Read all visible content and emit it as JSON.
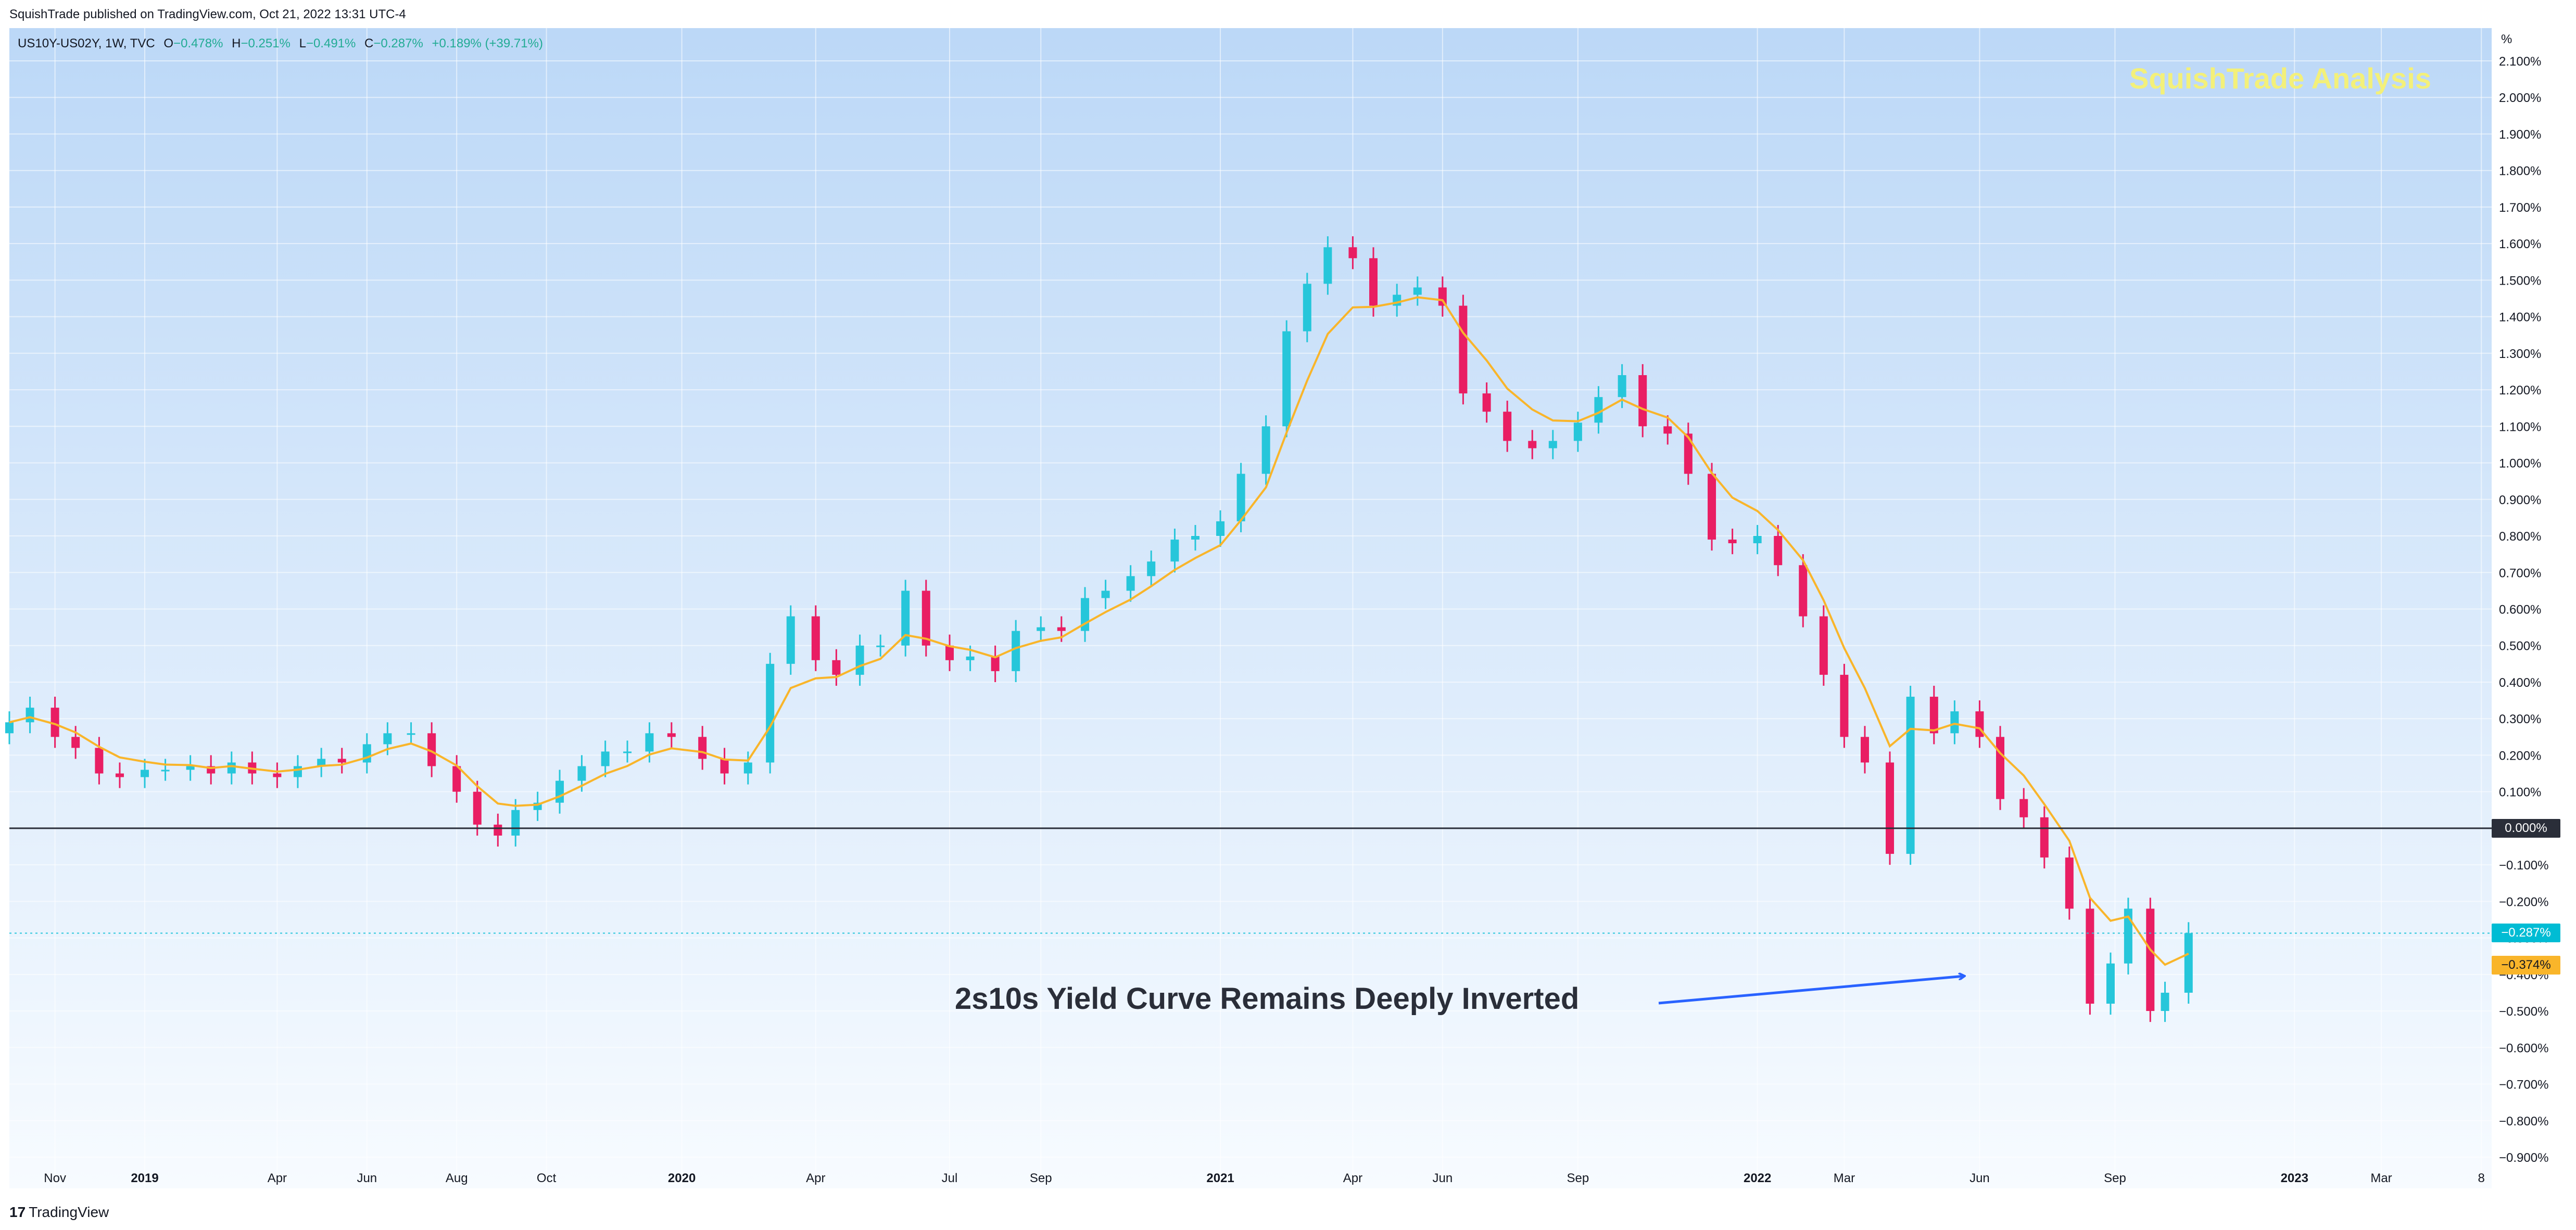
{
  "header": {
    "publisher_line": "SquishTrade published on TradingView.com, Oct 21, 2022 13:31 UTC-4"
  },
  "legend": {
    "symbol": "US10Y-US02Y, 1W, TVC",
    "open_label": "O",
    "open_value": "−0.478%",
    "high_label": "H",
    "high_value": "−0.251%",
    "low_label": "L",
    "low_value": "−0.491%",
    "close_label": "C",
    "close_value": "−0.287%",
    "change_value": "+0.189% (+39.71%)"
  },
  "watermark_text": "SquishTrade Analysis",
  "annotation_text": "2s10s Yield Curve Remains Deeply Inverted",
  "footer_logo_mark": "17",
  "footer_logo_text": "TradingView",
  "axis_unit": "%",
  "colors": {
    "up": "#26c6da",
    "down": "#e91e63",
    "ma": "#f9b52a",
    "zero_line": "#2a2e39",
    "arrow": "#2962ff",
    "bg_top": "#bcd8f7",
    "bg_bottom": "#f7fbff",
    "tag_current": "#00bcd4",
    "tag_ma": "#f9b52a",
    "tag_zero": "#2a2e39"
  },
  "price_tags": {
    "zero": "0.000%",
    "current": "−0.287%",
    "ma": "−0.374%"
  },
  "chart_data": {
    "type": "candlestick",
    "title": "",
    "interval": "1W",
    "ylabel": "%",
    "ylim": [
      -0.9,
      2.1
    ],
    "xlim": [
      "2018-10-01",
      "2023-05-15"
    ],
    "grid": true,
    "y_ticks": [
      "2.100%",
      "2.000%",
      "1.900%",
      "1.800%",
      "1.700%",
      "1.600%",
      "1.500%",
      "1.400%",
      "1.300%",
      "1.200%",
      "1.100%",
      "1.000%",
      "0.900%",
      "0.800%",
      "0.700%",
      "0.600%",
      "0.500%",
      "0.400%",
      "0.300%",
      "0.200%",
      "0.100%",
      "0.000%",
      "−0.100%",
      "−0.200%",
      "−0.300%",
      "−0.400%",
      "−0.500%",
      "−0.600%",
      "−0.700%",
      "−0.800%",
      "−0.900%"
    ],
    "x_ticks": [
      {
        "label": "Nov",
        "date": "2018-11-01"
      },
      {
        "label": "2019",
        "date": "2019-01-01",
        "bold": true
      },
      {
        "label": "Apr",
        "date": "2019-04-01"
      },
      {
        "label": "Jun",
        "date": "2019-06-01"
      },
      {
        "label": "Aug",
        "date": "2019-08-01"
      },
      {
        "label": "Oct",
        "date": "2019-10-01"
      },
      {
        "label": "2020",
        "date": "2020-01-01",
        "bold": true
      },
      {
        "label": "Apr",
        "date": "2020-04-01"
      },
      {
        "label": "Jul",
        "date": "2020-07-01"
      },
      {
        "label": "Sep",
        "date": "2020-09-01"
      },
      {
        "label": "2021",
        "date": "2021-01-01",
        "bold": true
      },
      {
        "label": "Apr",
        "date": "2021-04-01"
      },
      {
        "label": "Jun",
        "date": "2021-06-01"
      },
      {
        "label": "Sep",
        "date": "2021-09-01"
      },
      {
        "label": "2022",
        "date": "2022-01-01",
        "bold": true
      },
      {
        "label": "Mar",
        "date": "2022-03-01"
      },
      {
        "label": "Jun",
        "date": "2022-06-01"
      },
      {
        "label": "Sep",
        "date": "2022-09-01"
      },
      {
        "label": "2023",
        "date": "2023-01-01",
        "bold": true
      },
      {
        "label": "Mar",
        "date": "2023-03-01"
      },
      {
        "label": "8",
        "date": "2023-05-08"
      }
    ],
    "weekly_close": [
      {
        "date": "2018-10-01",
        "close": 0.29
      },
      {
        "date": "2018-10-15",
        "close": 0.33
      },
      {
        "date": "2018-11-01",
        "close": 0.25
      },
      {
        "date": "2018-11-15",
        "close": 0.22
      },
      {
        "date": "2018-12-01",
        "close": 0.15
      },
      {
        "date": "2018-12-15",
        "close": 0.14
      },
      {
        "date": "2019-01-01",
        "close": 0.16
      },
      {
        "date": "2019-01-15",
        "close": 0.16
      },
      {
        "date": "2019-02-01",
        "close": 0.17
      },
      {
        "date": "2019-02-15",
        "close": 0.15
      },
      {
        "date": "2019-03-01",
        "close": 0.18
      },
      {
        "date": "2019-03-15",
        "close": 0.15
      },
      {
        "date": "2019-04-01",
        "close": 0.14
      },
      {
        "date": "2019-04-15",
        "close": 0.17
      },
      {
        "date": "2019-05-01",
        "close": 0.19
      },
      {
        "date": "2019-05-15",
        "close": 0.18
      },
      {
        "date": "2019-06-01",
        "close": 0.23
      },
      {
        "date": "2019-06-15",
        "close": 0.26
      },
      {
        "date": "2019-07-01",
        "close": 0.26
      },
      {
        "date": "2019-07-15",
        "close": 0.17
      },
      {
        "date": "2019-08-01",
        "close": 0.1
      },
      {
        "date": "2019-08-15",
        "close": 0.01
      },
      {
        "date": "2019-08-29",
        "close": -0.02
      },
      {
        "date": "2019-09-10",
        "close": 0.05
      },
      {
        "date": "2019-09-25",
        "close": 0.07
      },
      {
        "date": "2019-10-10",
        "close": 0.13
      },
      {
        "date": "2019-10-25",
        "close": 0.17
      },
      {
        "date": "2019-11-10",
        "close": 0.21
      },
      {
        "date": "2019-11-25",
        "close": 0.21
      },
      {
        "date": "2019-12-10",
        "close": 0.26
      },
      {
        "date": "2019-12-25",
        "close": 0.25
      },
      {
        "date": "2020-01-15",
        "close": 0.19
      },
      {
        "date": "2020-01-30",
        "close": 0.15
      },
      {
        "date": "2020-02-15",
        "close": 0.18
      },
      {
        "date": "2020-03-01",
        "close": 0.45
      },
      {
        "date": "2020-03-15",
        "close": 0.58
      },
      {
        "date": "2020-04-01",
        "close": 0.46
      },
      {
        "date": "2020-04-15",
        "close": 0.42
      },
      {
        "date": "2020-05-01",
        "close": 0.5
      },
      {
        "date": "2020-05-15",
        "close": 0.5
      },
      {
        "date": "2020-06-01",
        "close": 0.65
      },
      {
        "date": "2020-06-15",
        "close": 0.5
      },
      {
        "date": "2020-07-01",
        "close": 0.46
      },
      {
        "date": "2020-07-15",
        "close": 0.47
      },
      {
        "date": "2020-08-01",
        "close": 0.43
      },
      {
        "date": "2020-08-15",
        "close": 0.54
      },
      {
        "date": "2020-09-01",
        "close": 0.55
      },
      {
        "date": "2020-09-15",
        "close": 0.54
      },
      {
        "date": "2020-10-01",
        "close": 0.63
      },
      {
        "date": "2020-10-15",
        "close": 0.65
      },
      {
        "date": "2020-11-01",
        "close": 0.69
      },
      {
        "date": "2020-11-15",
        "close": 0.73
      },
      {
        "date": "2020-12-01",
        "close": 0.79
      },
      {
        "date": "2020-12-15",
        "close": 0.8
      },
      {
        "date": "2021-01-01",
        "close": 0.84
      },
      {
        "date": "2021-01-15",
        "close": 0.97
      },
      {
        "date": "2021-02-01",
        "close": 1.1
      },
      {
        "date": "2021-02-15",
        "close": 1.36
      },
      {
        "date": "2021-03-01",
        "close": 1.49
      },
      {
        "date": "2021-03-15",
        "close": 1.59
      },
      {
        "date": "2021-04-01",
        "close": 1.56
      },
      {
        "date": "2021-04-15",
        "close": 1.43
      },
      {
        "date": "2021-05-01",
        "close": 1.46
      },
      {
        "date": "2021-05-15",
        "close": 1.48
      },
      {
        "date": "2021-06-01",
        "close": 1.43
      },
      {
        "date": "2021-06-15",
        "close": 1.19
      },
      {
        "date": "2021-07-01",
        "close": 1.14
      },
      {
        "date": "2021-07-15",
        "close": 1.06
      },
      {
        "date": "2021-08-01",
        "close": 1.04
      },
      {
        "date": "2021-08-15",
        "close": 1.06
      },
      {
        "date": "2021-09-01",
        "close": 1.11
      },
      {
        "date": "2021-09-15",
        "close": 1.18
      },
      {
        "date": "2021-10-01",
        "close": 1.24
      },
      {
        "date": "2021-10-15",
        "close": 1.1
      },
      {
        "date": "2021-11-01",
        "close": 1.08
      },
      {
        "date": "2021-11-15",
        "close": 0.97
      },
      {
        "date": "2021-12-01",
        "close": 0.79
      },
      {
        "date": "2021-12-15",
        "close": 0.78
      },
      {
        "date": "2022-01-01",
        "close": 0.8
      },
      {
        "date": "2022-01-15",
        "close": 0.72
      },
      {
        "date": "2022-02-01",
        "close": 0.58
      },
      {
        "date": "2022-02-15",
        "close": 0.42
      },
      {
        "date": "2022-03-01",
        "close": 0.25
      },
      {
        "date": "2022-03-15",
        "close": 0.18
      },
      {
        "date": "2022-04-01",
        "close": -0.07
      },
      {
        "date": "2022-04-15",
        "close": 0.36
      },
      {
        "date": "2022-05-01",
        "close": 0.26
      },
      {
        "date": "2022-05-15",
        "close": 0.32
      },
      {
        "date": "2022-06-01",
        "close": 0.25
      },
      {
        "date": "2022-06-15",
        "close": 0.08
      },
      {
        "date": "2022-07-01",
        "close": 0.03
      },
      {
        "date": "2022-07-15",
        "close": -0.08
      },
      {
        "date": "2022-08-01",
        "close": -0.22
      },
      {
        "date": "2022-08-15",
        "close": -0.48
      },
      {
        "date": "2022-08-29",
        "close": -0.37
      },
      {
        "date": "2022-09-10",
        "close": -0.22
      },
      {
        "date": "2022-09-25",
        "close": -0.5
      },
      {
        "date": "2022-10-05",
        "close": -0.45
      },
      {
        "date": "2022-10-21",
        "close": -0.287
      }
    ],
    "moving_average": {
      "name": "",
      "last_value": -0.374
    },
    "reference_lines": [
      {
        "y": 0.0
      },
      {
        "y": -0.287
      }
    ]
  }
}
